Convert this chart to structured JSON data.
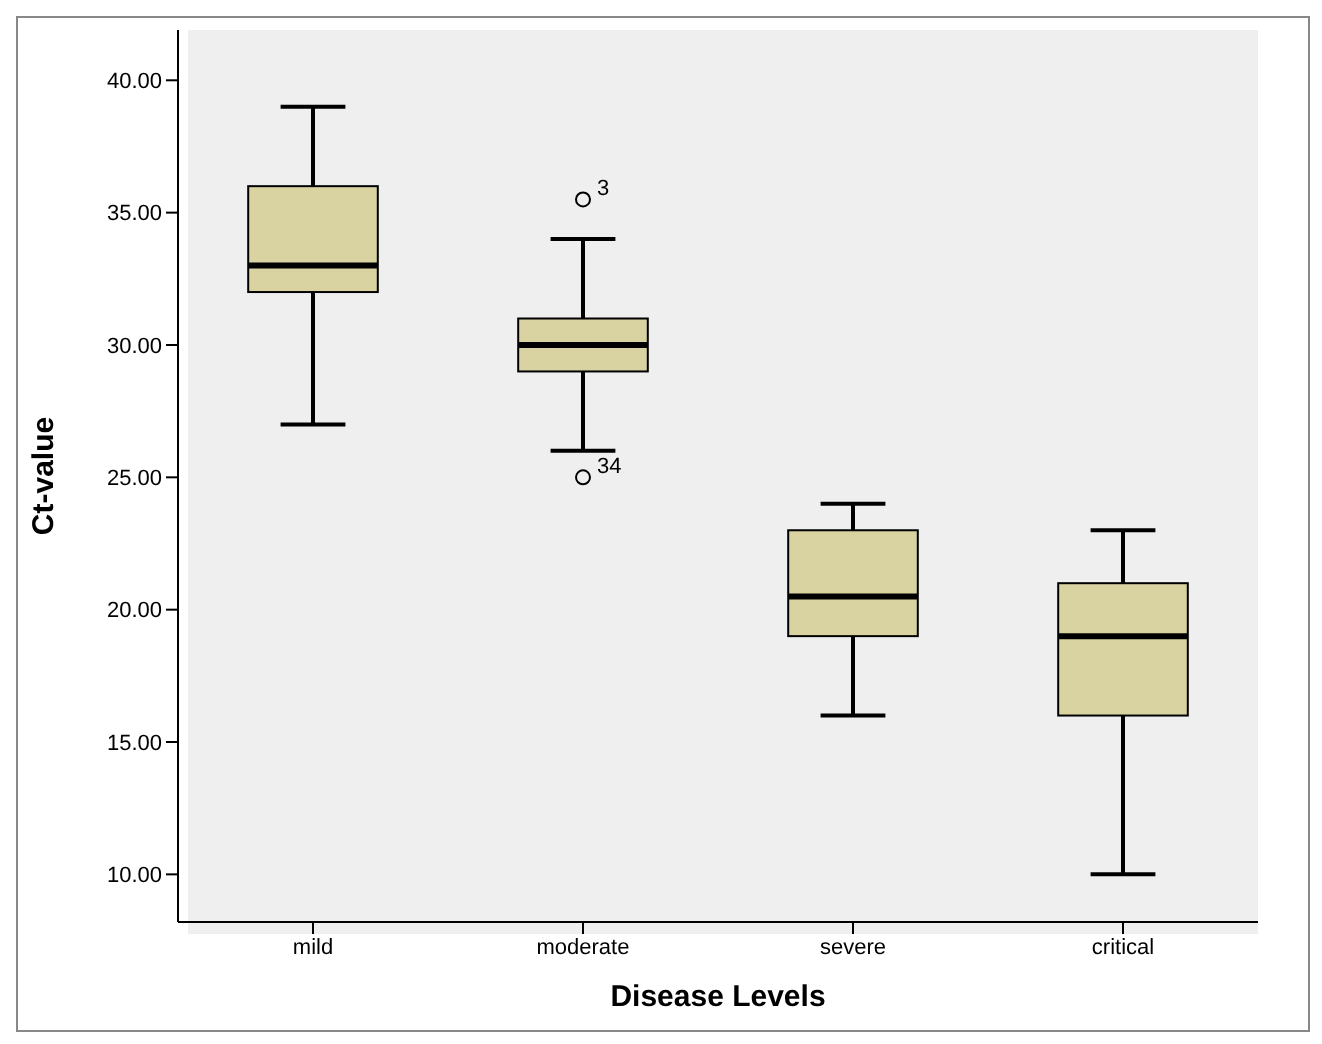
{
  "chart_data": {
    "type": "box",
    "xlabel": "Disease Levels",
    "ylabel": "Ct-value",
    "categories": [
      "mild",
      "moderate",
      "severe",
      "critical"
    ],
    "color": "#d8d3a0",
    "boxes": [
      {
        "low": 27,
        "q1": 32,
        "median": 33,
        "q3": 36,
        "high": 39
      },
      {
        "low": 26,
        "q1": 29,
        "median": 30,
        "q3": 31,
        "high": 34,
        "outliers": [
          35.5,
          25
        ]
      },
      {
        "low": 16,
        "q1": 19,
        "median": 20.5,
        "q3": 23,
        "high": 24
      },
      {
        "low": 10,
        "q1": 16,
        "median": 19,
        "q3": 21,
        "high": 23
      }
    ],
    "ylim": [
      8.2,
      41.9
    ],
    "yticks": [
      {
        "value": 10,
        "label": "10.00"
      },
      {
        "value": 15,
        "label": "15.00"
      },
      {
        "value": 20,
        "label": "20.00"
      },
      {
        "value": 25,
        "label": "25.00"
      },
      {
        "value": 30,
        "label": "30.00"
      },
      {
        "value": 35,
        "label": "35.00"
      },
      {
        "value": 40,
        "label": "40.00"
      }
    ],
    "annotations": [
      "3",
      "34"
    ],
    "grid": false,
    "legend": false
  }
}
